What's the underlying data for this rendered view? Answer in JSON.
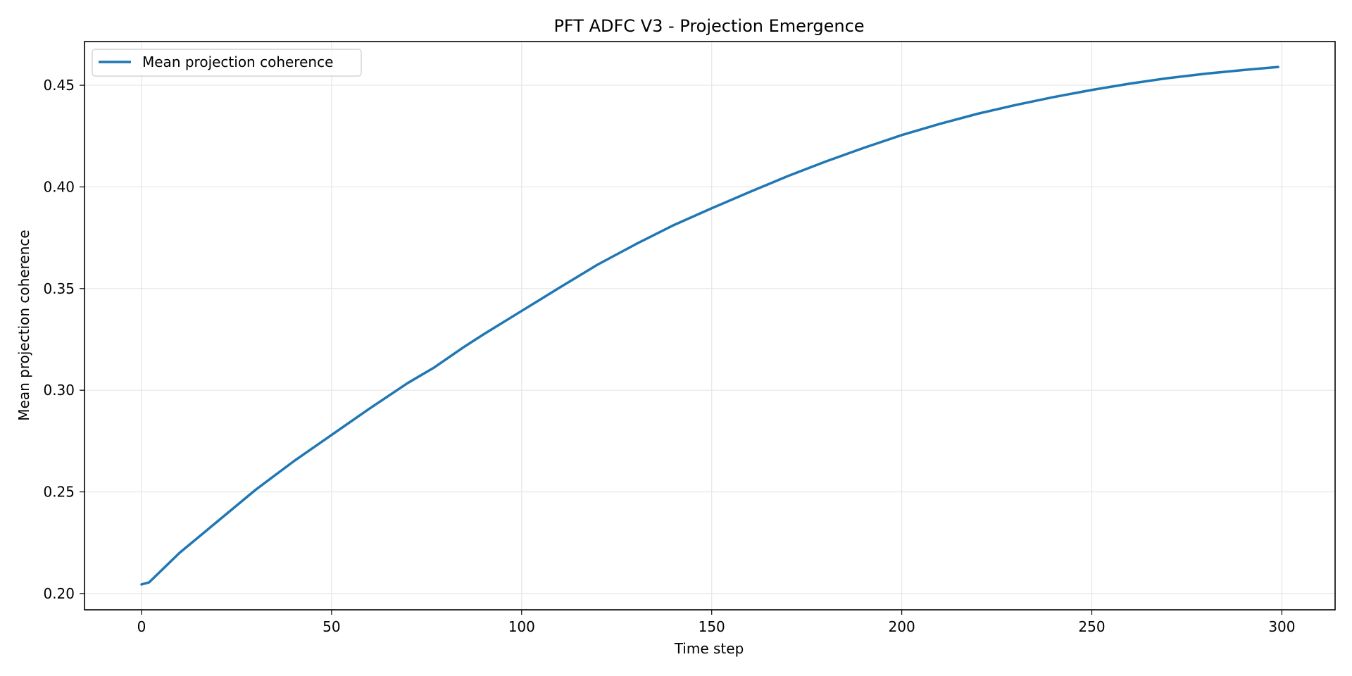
{
  "chart_data": {
    "type": "line",
    "title": "PFT ADFC V3 - Projection Emergence",
    "xlabel": "Time step",
    "ylabel": "Mean projection coherence",
    "xlim": [
      -15,
      314
    ],
    "ylim": [
      0.192,
      0.4715
    ],
    "xticks": [
      0,
      50,
      100,
      150,
      200,
      250,
      300
    ],
    "xtick_labels": [
      "0",
      "50",
      "100",
      "150",
      "200",
      "250",
      "300"
    ],
    "yticks": [
      0.2,
      0.25,
      0.3,
      0.35,
      0.4,
      0.45
    ],
    "ytick_labels": [
      "0.20",
      "0.25",
      "0.30",
      "0.35",
      "0.40",
      "0.45"
    ],
    "grid": true,
    "legend_position": "upper-left",
    "series": [
      {
        "name": "Mean projection coherence",
        "color": "#1f77b4",
        "x": [
          0,
          2,
          10,
          20,
          30,
          40,
          50,
          60,
          70,
          77,
          85,
          90,
          100,
          110,
          120,
          130,
          140,
          150,
          160,
          170,
          180,
          190,
          200,
          210,
          220,
          230,
          240,
          250,
          260,
          270,
          280,
          290,
          299
        ],
        "y": [
          0.2045,
          0.2055,
          0.22,
          0.2355,
          0.251,
          0.265,
          0.278,
          0.291,
          0.3035,
          0.3112,
          0.3215,
          0.3275,
          0.339,
          0.3505,
          0.3618,
          0.3718,
          0.3812,
          0.3895,
          0.3975,
          0.4053,
          0.4125,
          0.4192,
          0.4255,
          0.431,
          0.436,
          0.4403,
          0.4442,
          0.4477,
          0.4508,
          0.4535,
          0.4557,
          0.4575,
          0.459
        ]
      }
    ]
  }
}
